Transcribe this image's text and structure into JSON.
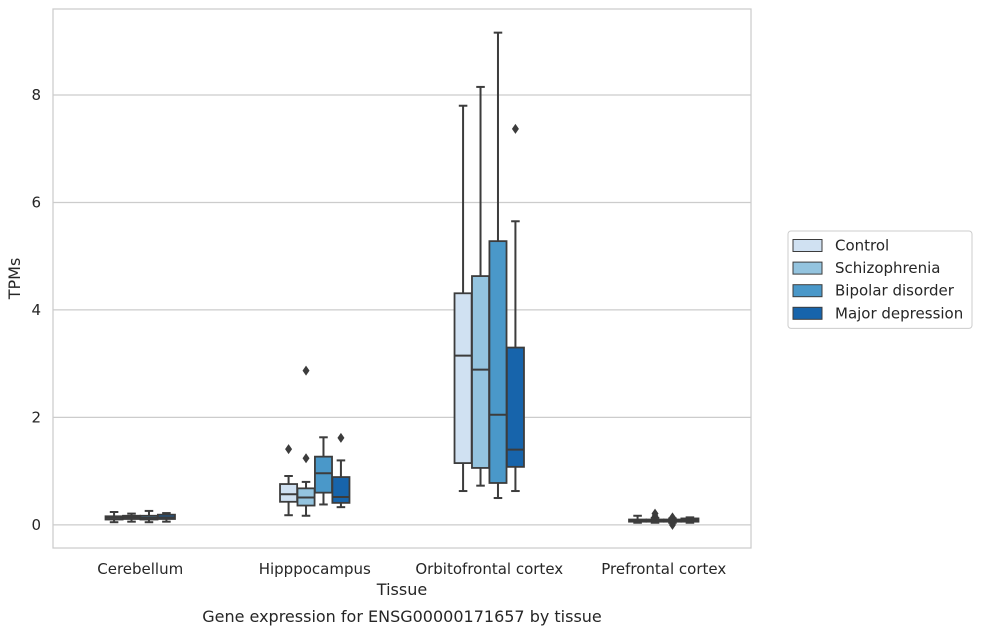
{
  "chart_data": {
    "type": "box",
    "xlabel": "Tissue",
    "ylabel": "TPMs",
    "caption": "Gene expression for ENSG00000171657 by tissue",
    "ylim": [
      -0.43,
      9.6
    ],
    "yticks": [
      0,
      2,
      4,
      6,
      8
    ],
    "grid": true,
    "legend_position": "right",
    "categories": [
      "Cerebellum",
      "Hipppocampus",
      "Orbitofrontal cortex",
      "Prefrontal cortex"
    ],
    "series": [
      {
        "name": "Control",
        "color": "#d0e1f2",
        "boxes": [
          {
            "whislo": 0.05,
            "q1": 0.1,
            "med": 0.13,
            "q3": 0.16,
            "whishi": 0.24,
            "fliers": []
          },
          {
            "whislo": 0.18,
            "q1": 0.43,
            "med": 0.57,
            "q3": 0.76,
            "whishi": 0.91,
            "fliers": [
              1.41
            ]
          },
          {
            "whislo": 0.63,
            "q1": 1.15,
            "med": 3.15,
            "q3": 4.31,
            "whishi": 7.8,
            "fliers": []
          },
          {
            "whislo": 0.04,
            "q1": 0.06,
            "med": 0.08,
            "q3": 0.1,
            "whishi": 0.17,
            "fliers": []
          }
        ]
      },
      {
        "name": "Schizophrenia",
        "color": "#94c4df",
        "boxes": [
          {
            "whislo": 0.06,
            "q1": 0.11,
            "med": 0.14,
            "q3": 0.17,
            "whishi": 0.21,
            "fliers": []
          },
          {
            "whislo": 0.17,
            "q1": 0.36,
            "med": 0.51,
            "q3": 0.68,
            "whishi": 0.8,
            "fliers": [
              1.24,
              2.87
            ]
          },
          {
            "whislo": 0.73,
            "q1": 1.06,
            "med": 2.89,
            "q3": 4.63,
            "whishi": 8.15,
            "fliers": []
          },
          {
            "whislo": 0.04,
            "q1": 0.06,
            "med": 0.08,
            "q3": 0.1,
            "whishi": 0.13,
            "fliers": [
              0.16,
              0.21
            ]
          }
        ]
      },
      {
        "name": "Bipolar disorder",
        "color": "#4a98c9",
        "boxes": [
          {
            "whislo": 0.05,
            "q1": 0.1,
            "med": 0.13,
            "q3": 0.17,
            "whishi": 0.26,
            "fliers": []
          },
          {
            "whislo": 0.38,
            "q1": 0.6,
            "med": 0.96,
            "q3": 1.27,
            "whishi": 1.63,
            "fliers": []
          },
          {
            "whislo": 0.5,
            "q1": 0.78,
            "med": 2.05,
            "q3": 5.28,
            "whishi": 9.16,
            "fliers": []
          },
          {
            "whislo": 0.04,
            "q1": 0.06,
            "med": 0.08,
            "q3": 0.1,
            "whishi": 0.12,
            "fliers": [
              0.0,
              0.03,
              0.14
            ]
          }
        ]
      },
      {
        "name": "Major depression",
        "color": "#1764ab",
        "boxes": [
          {
            "whislo": 0.06,
            "q1": 0.11,
            "med": 0.14,
            "q3": 0.19,
            "whishi": 0.22,
            "fliers": []
          },
          {
            "whislo": 0.33,
            "q1": 0.41,
            "med": 0.52,
            "q3": 0.89,
            "whishi": 1.2,
            "fliers": [
              1.62
            ]
          },
          {
            "whislo": 0.63,
            "q1": 1.08,
            "med": 1.4,
            "q3": 3.3,
            "whishi": 5.65,
            "fliers": [
              7.37
            ]
          },
          {
            "whislo": 0.04,
            "q1": 0.06,
            "med": 0.09,
            "q3": 0.12,
            "whishi": 0.14,
            "fliers": []
          }
        ]
      }
    ]
  },
  "colors": {
    "grid": "#cccccc",
    "frame": "#cccccc",
    "line": "#3c3c3c",
    "text": "#262626"
  }
}
